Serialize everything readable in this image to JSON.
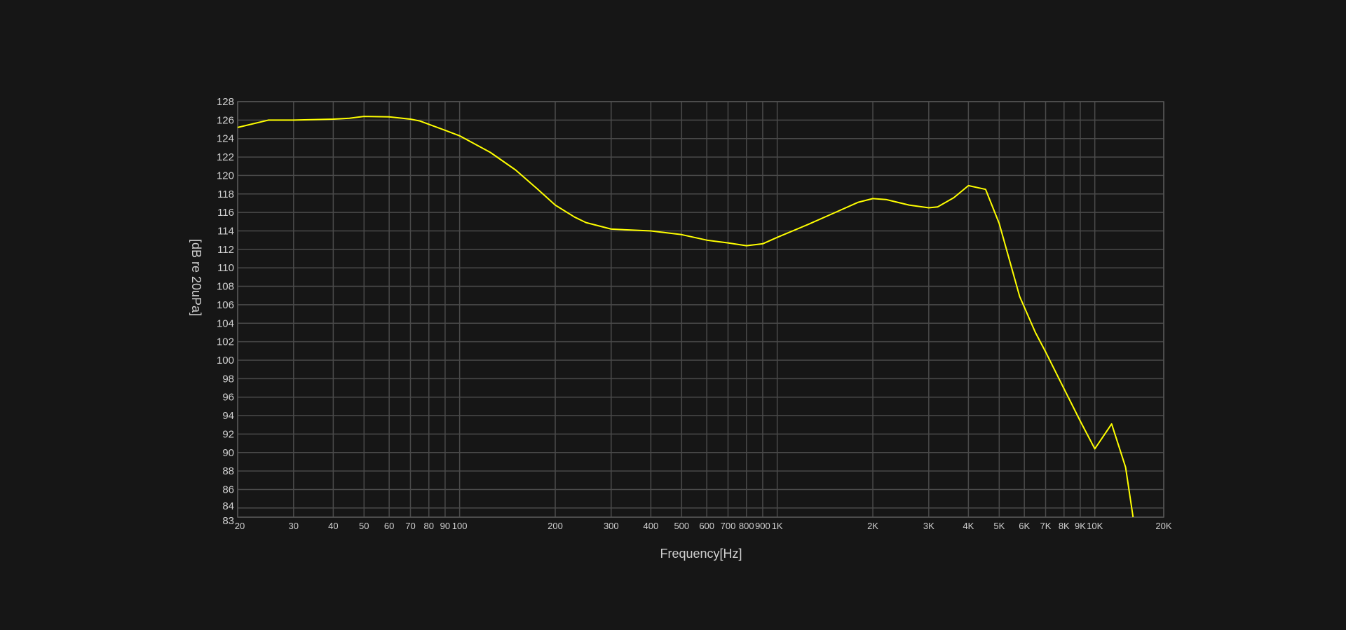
{
  "chart_data": {
    "type": "line",
    "title": "",
    "xlabel": "Frequency[Hz]",
    "ylabel": "[dB re 20uPa]",
    "x_scale": "log",
    "xlim": [
      20,
      20000
    ],
    "ylim": [
      83,
      128
    ],
    "grid": true,
    "x_ticks": [
      {
        "value": 20,
        "label": "20"
      },
      {
        "value": 30,
        "label": "30"
      },
      {
        "value": 40,
        "label": "40"
      },
      {
        "value": 50,
        "label": "50"
      },
      {
        "value": 60,
        "label": "60"
      },
      {
        "value": 70,
        "label": "70"
      },
      {
        "value": 80,
        "label": "80"
      },
      {
        "value": 90,
        "label": "90"
      },
      {
        "value": 100,
        "label": "100"
      },
      {
        "value": 200,
        "label": "200"
      },
      {
        "value": 300,
        "label": "300"
      },
      {
        "value": 400,
        "label": "400"
      },
      {
        "value": 500,
        "label": "500"
      },
      {
        "value": 600,
        "label": "600"
      },
      {
        "value": 700,
        "label": "700"
      },
      {
        "value": 800,
        "label": "800"
      },
      {
        "value": 900,
        "label": "900"
      },
      {
        "value": 1000,
        "label": "1K"
      },
      {
        "value": 2000,
        "label": "2K"
      },
      {
        "value": 3000,
        "label": "3K"
      },
      {
        "value": 4000,
        "label": "4K"
      },
      {
        "value": 5000,
        "label": "5K"
      },
      {
        "value": 6000,
        "label": "6K"
      },
      {
        "value": 7000,
        "label": "7K"
      },
      {
        "value": 8000,
        "label": "8K"
      },
      {
        "value": 9000,
        "label": "9K"
      },
      {
        "value": 10000,
        "label": "10K"
      },
      {
        "value": 20000,
        "label": "20K"
      }
    ],
    "y_ticks": [
      83,
      84,
      86,
      88,
      90,
      92,
      94,
      96,
      98,
      100,
      102,
      104,
      106,
      108,
      110,
      112,
      114,
      116,
      118,
      120,
      122,
      124,
      126,
      128
    ],
    "line_color": "#ffff00",
    "grid_color": "#4a4a4a",
    "background": "#161616",
    "series": [
      {
        "x": [
          20,
          25,
          30,
          40,
          45,
          50,
          60,
          70,
          75,
          90,
          100,
          125,
          150,
          175,
          200,
          230,
          250,
          300,
          400,
          500,
          600,
          700,
          800,
          900,
          1000,
          1250,
          1500,
          1800,
          2000,
          2200,
          2600,
          3000,
          3200,
          3600,
          4000,
          4530,
          5000,
          5800,
          6500,
          7000,
          8000,
          9000,
          10000,
          11300,
          12500,
          13200
        ],
        "y": [
          125.2,
          126.0,
          126.0,
          126.1,
          126.2,
          126.4,
          126.35,
          126.1,
          125.9,
          124.9,
          124.3,
          122.5,
          120.6,
          118.6,
          116.8,
          115.5,
          114.9,
          114.2,
          114.0,
          113.6,
          113.0,
          112.7,
          112.4,
          112.6,
          113.3,
          114.7,
          115.9,
          117.1,
          117.5,
          117.4,
          116.8,
          116.5,
          116.6,
          117.6,
          118.9,
          118.5,
          114.8,
          106.9,
          103.0,
          100.9,
          96.9,
          93.4,
          90.4,
          93.1,
          88.4,
          83.0
        ]
      }
    ]
  }
}
